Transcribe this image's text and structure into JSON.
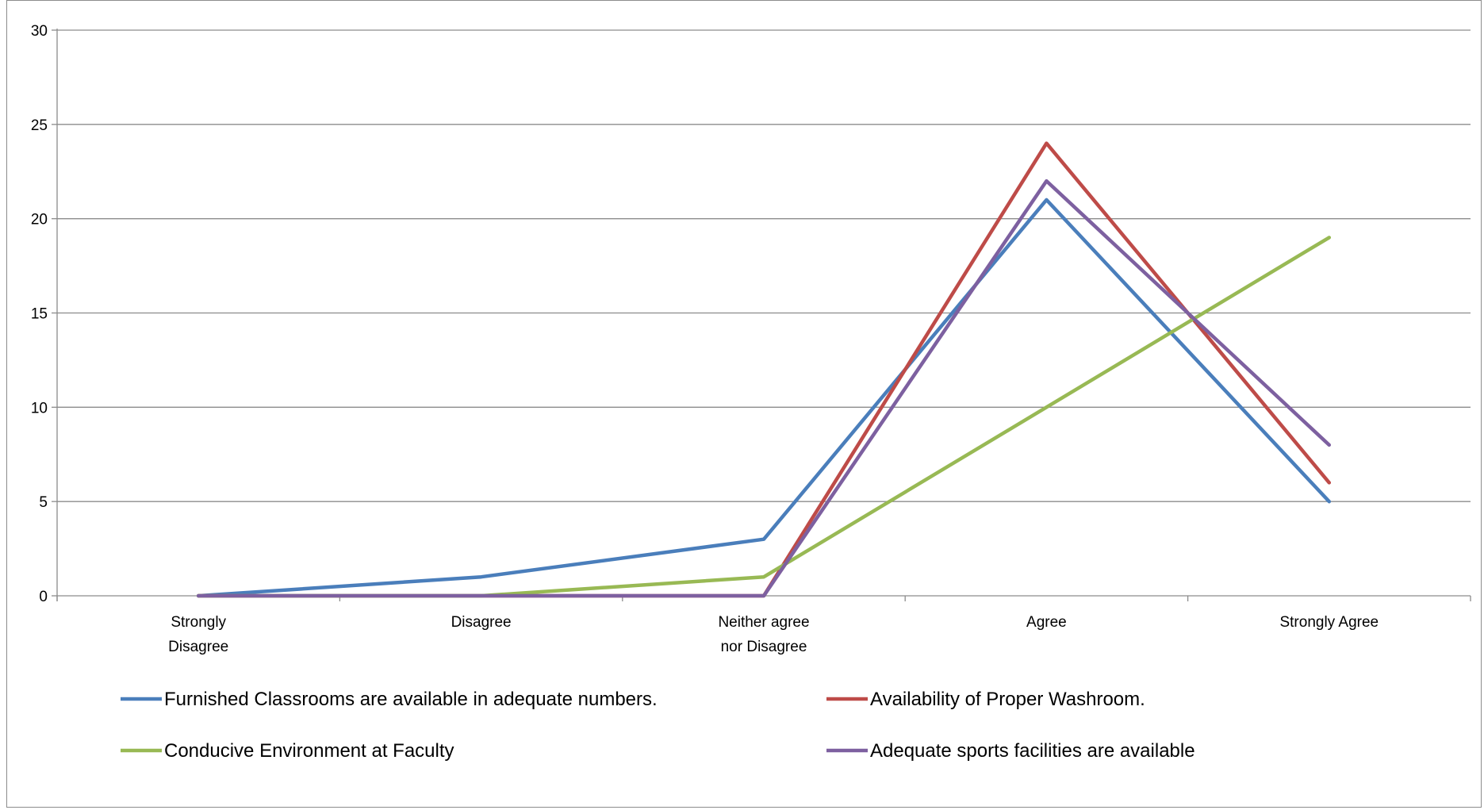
{
  "chart_data": {
    "type": "line",
    "title": "",
    "xlabel": "",
    "ylabel": "",
    "categories": [
      [
        "Strongly",
        "Disagree"
      ],
      [
        "Disagree"
      ],
      [
        "Neither agree",
        "nor Disagree"
      ],
      [
        "Agree"
      ],
      [
        "Strongly Agree"
      ]
    ],
    "ylim": [
      0,
      30
    ],
    "yticks": [
      0,
      5,
      10,
      15,
      20,
      25,
      30
    ],
    "grid": "horizontal major gridlines",
    "legend_position": "bottom",
    "series": [
      {
        "name": "Furnished Classrooms are available in adequate numbers.",
        "color": "#4a7ebb",
        "values": [
          0,
          1,
          3,
          21,
          5
        ]
      },
      {
        "name": "Availability of Proper Washroom.",
        "color": "#be4b48",
        "values": [
          0,
          0,
          0,
          24,
          6
        ]
      },
      {
        "name": "Conducive Environment at Faculty",
        "color": "#98b954",
        "values": [
          0,
          0,
          1,
          10,
          19
        ]
      },
      {
        "name": "Adequate sports facilities are available",
        "color": "#7d60a0",
        "values": [
          0,
          0,
          0,
          22,
          8
        ]
      }
    ]
  }
}
